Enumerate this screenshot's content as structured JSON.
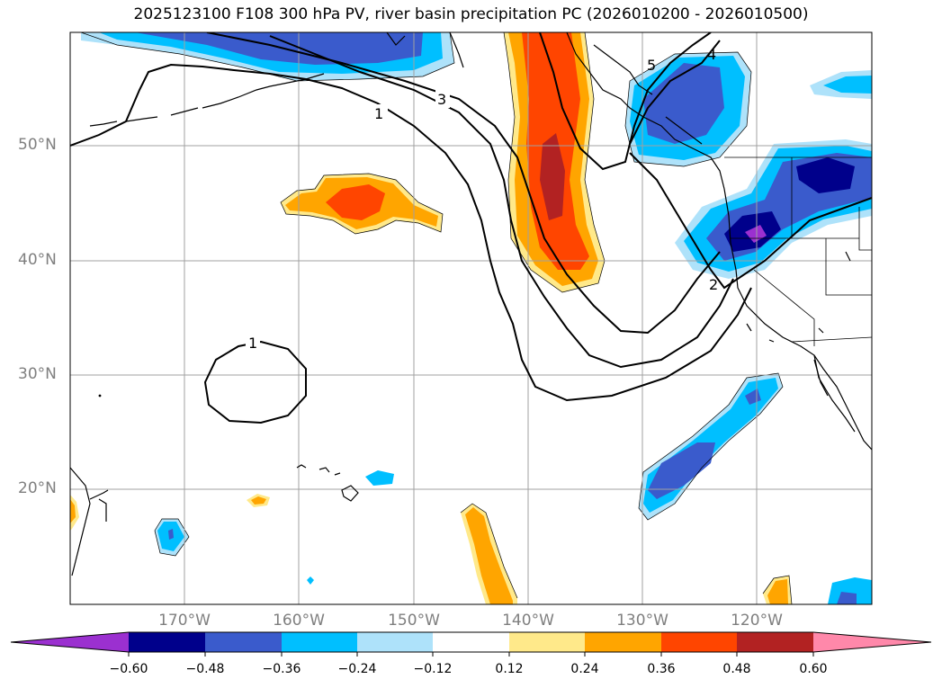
{
  "title": "2025123100 F108 300 hPa PV, river basin precipitation PC (2026010200 - 2026010500)",
  "map": {
    "lat_labels": [
      "50°N",
      "40°N",
      "30°N",
      "20°N"
    ],
    "lon_labels": [
      "170°W",
      "160°W",
      "150°W",
      "140°W",
      "130°W",
      "120°W"
    ],
    "contour_labels": [
      "1",
      "3",
      "1",
      "2",
      "5",
      "4"
    ]
  },
  "colorbar": {
    "colors": [
      "#9b30d0",
      "#00008b",
      "#3a5bcc",
      "#00bfff",
      "#aee2fa",
      "#ffffff",
      "#ffe98a",
      "#ffa500",
      "#ff4500",
      "#b22222",
      "#ff88aa"
    ],
    "ticks": [
      "−0.60",
      "−0.48",
      "−0.36",
      "−0.24",
      "−0.12",
      "0.12",
      "0.24",
      "0.36",
      "0.48",
      "0.60"
    ]
  }
}
